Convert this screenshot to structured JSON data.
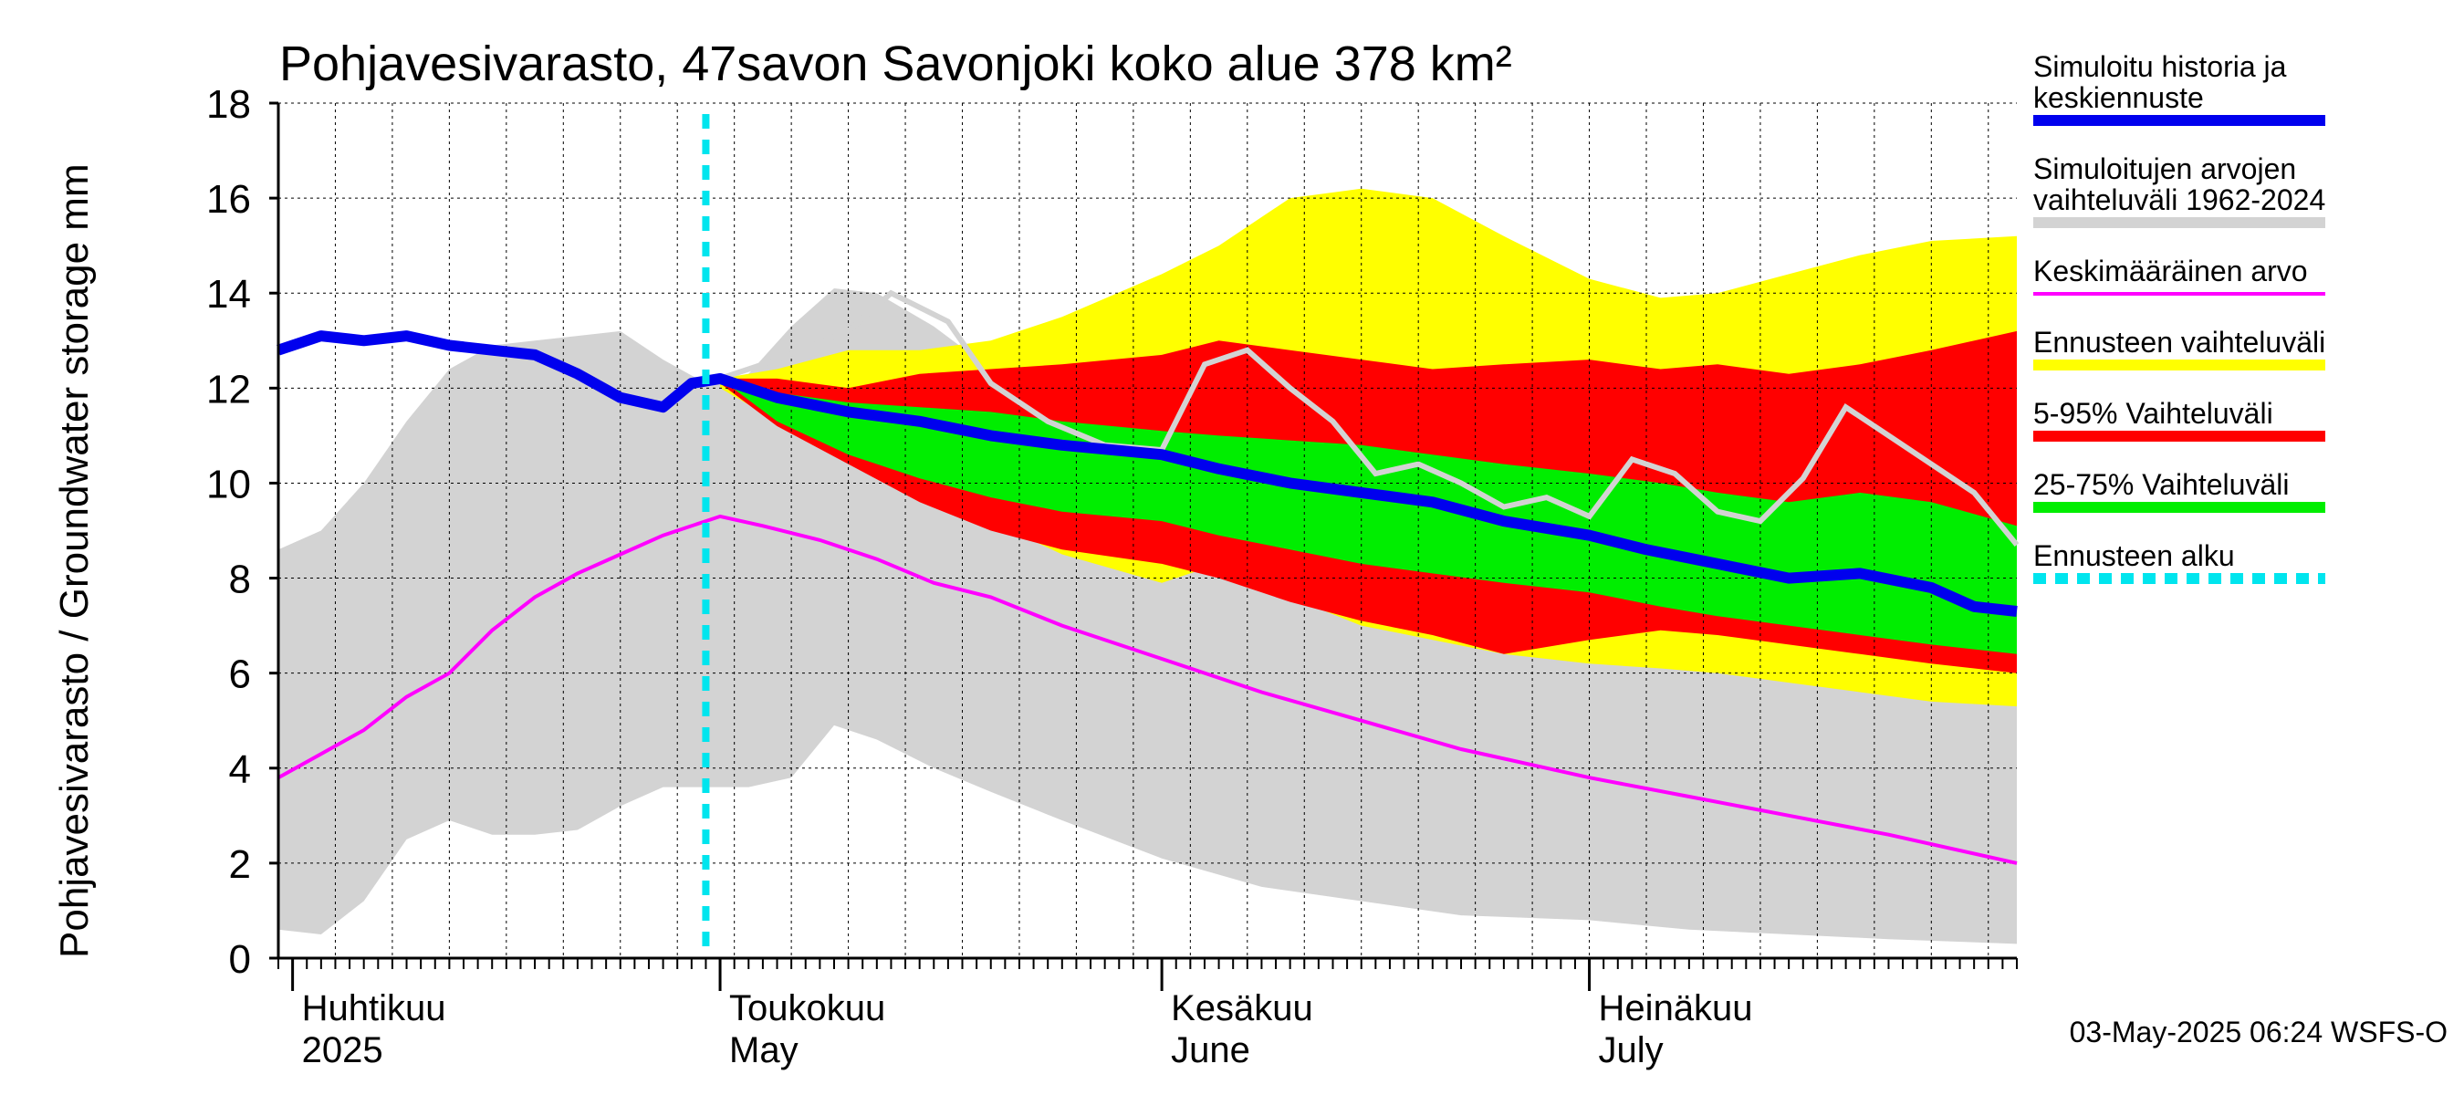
{
  "chart_data": {
    "type": "area",
    "title": "Pohjavesivarasto, 47savon Savonjoki koko alue 378 km²",
    "ylabel": "Pohjavesivarasto / Groundwater storage   mm",
    "ylim": [
      0,
      18
    ],
    "yticks": [
      0,
      2,
      4,
      6,
      8,
      10,
      12,
      14,
      16,
      18
    ],
    "xlim": [
      "2025-03-31",
      "2025-07-31"
    ],
    "grid": true,
    "legend_position": "right",
    "months": [
      {
        "date": "2025-04-01",
        "fi": "Huhtikuu",
        "en": "2025"
      },
      {
        "date": "2025-05-01",
        "fi": "Toukokuu",
        "en": "May"
      },
      {
        "date": "2025-06-01",
        "fi": "Kesäkuu",
        "en": "June"
      },
      {
        "date": "2025-07-01",
        "fi": "Heinäkuu",
        "en": "July"
      }
    ],
    "forecast_start": "2025-04-30",
    "timestamp": "03-May-2025 06:24 WSFS-O",
    "colors": {
      "history_range": "#d3d3d3",
      "forecast_range": "#ffff00",
      "p5_95": "#ff0000",
      "p25_75": "#00ee00",
      "mean": "#ff00ff",
      "simulated": "#0000ee",
      "similar_year": "#d3d3d3",
      "forecast_start": "#00e5ee"
    },
    "legend": [
      {
        "key": "simulated",
        "label_lines": [
          "Simuloitu historia ja",
          "keskiennuste"
        ]
      },
      {
        "key": "history_range",
        "label_lines": [
          "Simuloitujen arvojen",
          "vaihteluväli 1962-2024"
        ]
      },
      {
        "key": "mean",
        "label_lines": [
          "Keskimääräinen arvo"
        ]
      },
      {
        "key": "forecast_range",
        "label_lines": [
          "Ennusteen vaihteluväli"
        ]
      },
      {
        "key": "p5_95",
        "label_lines": [
          "5-95% Vaihteluväli"
        ]
      },
      {
        "key": "p25_75",
        "label_lines": [
          "25-75% Vaihteluväli"
        ]
      },
      {
        "key": "forecast_start",
        "label_lines": [
          "Ennusteen alku"
        ]
      }
    ],
    "history_range": {
      "x": [
        "2025-03-31",
        "2025-04-03",
        "2025-04-06",
        "2025-04-09",
        "2025-04-12",
        "2025-04-15",
        "2025-04-18",
        "2025-04-21",
        "2025-04-24",
        "2025-04-27",
        "2025-04-30",
        "2025-05-03",
        "2025-05-06",
        "2025-05-09",
        "2025-05-12",
        "2025-05-16",
        "2025-05-20",
        "2025-05-25",
        "2025-06-01",
        "2025-06-08",
        "2025-06-15",
        "2025-06-22",
        "2025-07-01",
        "2025-07-08",
        "2025-07-15",
        "2025-07-22",
        "2025-07-31"
      ],
      "upper": [
        8.6,
        9.0,
        10.0,
        11.3,
        12.4,
        12.9,
        13.0,
        13.1,
        13.2,
        12.6,
        12.1,
        12.3,
        13.3,
        14.1,
        14.0,
        13.3,
        12.4,
        11.5,
        10.5,
        9.8,
        9.3,
        8.8,
        8.5,
        8.1,
        7.6,
        7.0,
        6.3
      ],
      "lower": [
        0.6,
        0.5,
        1.2,
        2.5,
        2.9,
        2.6,
        2.6,
        2.7,
        3.2,
        3.6,
        3.6,
        3.6,
        3.8,
        4.9,
        4.6,
        4.0,
        3.5,
        2.9,
        2.1,
        1.5,
        1.2,
        0.9,
        0.8,
        0.6,
        0.5,
        0.4,
        0.3
      ]
    },
    "forecast_range": {
      "x": [
        "2025-05-01",
        "2025-05-05",
        "2025-05-10",
        "2025-05-15",
        "2025-05-20",
        "2025-05-25",
        "2025-06-01",
        "2025-06-05",
        "2025-06-10",
        "2025-06-15",
        "2025-06-20",
        "2025-06-25",
        "2025-07-01",
        "2025-07-06",
        "2025-07-10",
        "2025-07-15",
        "2025-07-20",
        "2025-07-25",
        "2025-07-31"
      ],
      "upper": [
        12.2,
        12.4,
        12.8,
        12.8,
        13.0,
        13.5,
        14.4,
        15.0,
        16.0,
        16.2,
        16.0,
        15.2,
        14.3,
        13.9,
        14.0,
        14.4,
        14.8,
        15.1,
        15.2
      ],
      "lower": [
        12.0,
        11.3,
        10.6,
        9.9,
        9.2,
        8.5,
        7.9,
        8.3,
        7.6,
        7.0,
        6.7,
        6.4,
        6.2,
        6.1,
        6.0,
        5.8,
        5.6,
        5.4,
        5.3
      ]
    },
    "p5_95": {
      "x": [
        "2025-05-01",
        "2025-05-05",
        "2025-05-10",
        "2025-05-15",
        "2025-05-20",
        "2025-05-25",
        "2025-06-01",
        "2025-06-05",
        "2025-06-10",
        "2025-06-15",
        "2025-06-20",
        "2025-06-25",
        "2025-07-01",
        "2025-07-06",
        "2025-07-10",
        "2025-07-15",
        "2025-07-20",
        "2025-07-25",
        "2025-07-31"
      ],
      "upper": [
        12.2,
        12.2,
        12.0,
        12.3,
        12.4,
        12.5,
        12.7,
        13.0,
        12.8,
        12.6,
        12.4,
        12.5,
        12.6,
        12.4,
        12.5,
        12.3,
        12.5,
        12.8,
        13.2
      ],
      "lower": [
        12.1,
        11.2,
        10.4,
        9.6,
        9.0,
        8.6,
        8.3,
        8.0,
        7.5,
        7.1,
        6.8,
        6.4,
        6.7,
        6.9,
        6.8,
        6.6,
        6.4,
        6.2,
        6.0
      ]
    },
    "p25_75": {
      "x": [
        "2025-05-01",
        "2025-05-05",
        "2025-05-10",
        "2025-05-15",
        "2025-05-20",
        "2025-05-25",
        "2025-06-01",
        "2025-06-05",
        "2025-06-10",
        "2025-06-15",
        "2025-06-20",
        "2025-06-25",
        "2025-07-01",
        "2025-07-06",
        "2025-07-10",
        "2025-07-15",
        "2025-07-20",
        "2025-07-25",
        "2025-07-31"
      ],
      "upper": [
        12.2,
        11.9,
        11.7,
        11.6,
        11.5,
        11.3,
        11.1,
        11.0,
        10.9,
        10.8,
        10.6,
        10.4,
        10.2,
        10.0,
        9.8,
        9.6,
        9.8,
        9.6,
        9.1
      ],
      "lower": [
        12.2,
        11.3,
        10.6,
        10.1,
        9.7,
        9.4,
        9.2,
        8.9,
        8.6,
        8.3,
        8.1,
        7.9,
        7.7,
        7.4,
        7.2,
        7.0,
        6.8,
        6.6,
        6.4
      ]
    },
    "mean": {
      "x": [
        "2025-03-31",
        "2025-04-03",
        "2025-04-06",
        "2025-04-09",
        "2025-04-12",
        "2025-04-15",
        "2025-04-18",
        "2025-04-21",
        "2025-04-24",
        "2025-04-27",
        "2025-04-30",
        "2025-05-01",
        "2025-05-04",
        "2025-05-08",
        "2025-05-12",
        "2025-05-16",
        "2025-05-20",
        "2025-05-25",
        "2025-06-01",
        "2025-06-08",
        "2025-06-15",
        "2025-06-22",
        "2025-07-01",
        "2025-07-08",
        "2025-07-15",
        "2025-07-22",
        "2025-07-31"
      ],
      "values": [
        3.8,
        4.3,
        4.8,
        5.5,
        6.0,
        6.9,
        7.6,
        8.1,
        8.5,
        8.9,
        9.2,
        9.3,
        9.1,
        8.8,
        8.4,
        7.9,
        7.6,
        7.0,
        6.3,
        5.6,
        5.0,
        4.4,
        3.8,
        3.4,
        3.0,
        2.6,
        2.0
      ]
    },
    "similar_year": {
      "x": [
        "2025-05-01",
        "2025-05-05",
        "2025-05-10",
        "2025-05-13",
        "2025-05-17",
        "2025-05-20",
        "2025-05-24",
        "2025-05-28",
        "2025-06-01",
        "2025-06-04",
        "2025-06-07",
        "2025-06-10",
        "2025-06-13",
        "2025-06-16",
        "2025-06-19",
        "2025-06-22",
        "2025-06-25",
        "2025-06-28",
        "2025-07-01",
        "2025-07-04",
        "2025-07-07",
        "2025-07-10",
        "2025-07-13",
        "2025-07-16",
        "2025-07-19",
        "2025-07-22",
        "2025-07-25",
        "2025-07-28",
        "2025-07-31"
      ],
      "values": [
        12.2,
        12.6,
        13.2,
        14.0,
        13.4,
        12.1,
        11.3,
        10.8,
        10.7,
        12.5,
        12.8,
        12.0,
        11.3,
        10.2,
        10.4,
        10.0,
        9.5,
        9.7,
        9.3,
        10.5,
        10.2,
        9.4,
        9.2,
        10.1,
        11.6,
        11.0,
        10.4,
        9.8,
        8.7
      ]
    },
    "simulated": {
      "x": [
        "2025-03-31",
        "2025-04-03",
        "2025-04-06",
        "2025-04-09",
        "2025-04-12",
        "2025-04-15",
        "2025-04-18",
        "2025-04-21",
        "2025-04-24",
        "2025-04-27",
        "2025-04-29",
        "2025-05-01",
        "2025-05-05",
        "2025-05-10",
        "2025-05-15",
        "2025-05-20",
        "2025-05-25",
        "2025-06-01",
        "2025-06-05",
        "2025-06-10",
        "2025-06-15",
        "2025-06-20",
        "2025-06-25",
        "2025-07-01",
        "2025-07-05",
        "2025-07-10",
        "2025-07-15",
        "2025-07-20",
        "2025-07-25",
        "2025-07-28",
        "2025-07-31"
      ],
      "values": [
        12.8,
        13.1,
        13.0,
        13.1,
        12.9,
        12.8,
        12.7,
        12.3,
        11.8,
        11.6,
        12.1,
        12.2,
        11.8,
        11.5,
        11.3,
        11.0,
        10.8,
        10.6,
        10.3,
        10.0,
        9.8,
        9.6,
        9.2,
        8.9,
        8.6,
        8.3,
        8.0,
        8.1,
        7.8,
        7.4,
        7.3
      ]
    }
  }
}
